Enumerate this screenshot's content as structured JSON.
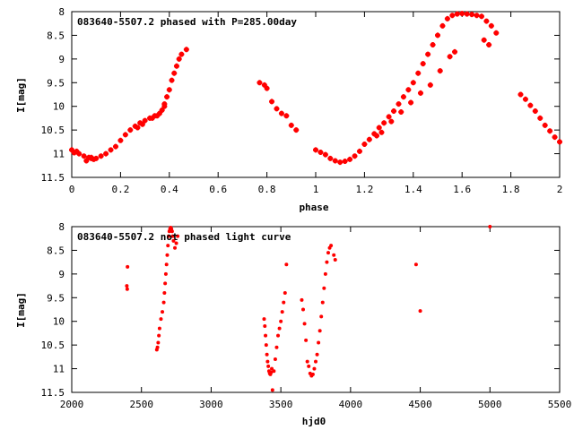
{
  "colors": {
    "points": "#ff0000",
    "axes": "#000000",
    "background": "#ffffff"
  },
  "chart_data": [
    {
      "type": "scatter",
      "title": "083640-5507.2 phased with P=285.00day",
      "xlabel": "phase",
      "ylabel": "I[mag]",
      "xlim": [
        0,
        2
      ],
      "ylim": [
        8,
        11.5
      ],
      "y_inverted": true,
      "grid": false,
      "x_ticks": [
        "0",
        "0.2",
        "0.4",
        "0.6",
        "0.8",
        "1",
        "1.2",
        "1.4",
        "1.6",
        "1.8",
        "2"
      ],
      "y_ticks": [
        "8",
        "8.5",
        "9",
        "9.5",
        "10",
        "10.5",
        "11",
        "11.5"
      ],
      "series": [
        {
          "x": [
            0.0,
            0.01,
            0.02,
            0.03,
            0.05,
            0.07,
            0.08,
            0.09,
            0.1,
            0.12,
            0.14,
            0.16,
            0.18,
            0.2,
            0.22,
            0.24,
            0.26,
            0.28,
            0.3,
            0.32,
            0.34,
            0.36,
            0.37,
            0.38,
            0.39,
            0.4,
            0.41,
            0.42,
            0.43,
            0.44,
            0.45,
            0.47,
            0.77,
            0.79,
            0.8,
            0.82,
            0.84,
            0.86,
            0.88,
            0.9,
            0.92,
            1.0,
            1.02,
            1.04,
            1.06,
            1.08,
            1.1,
            1.12,
            1.14,
            1.16,
            1.18,
            1.2,
            1.22,
            1.24,
            1.26,
            1.28,
            1.3,
            1.32,
            1.34,
            1.36,
            1.38,
            1.4,
            1.42,
            1.44,
            1.46,
            1.48,
            1.5,
            1.52,
            1.54,
            1.56,
            1.58,
            1.6,
            1.62,
            1.64,
            1.66,
            1.68,
            1.7,
            1.72,
            1.74,
            1.84,
            1.86,
            1.88,
            1.9,
            1.92,
            1.94,
            1.96,
            1.98,
            2.0,
            0.27,
            0.29,
            0.33,
            0.35,
            0.38,
            1.25,
            1.27,
            1.31,
            1.35,
            1.39,
            1.43,
            1.47,
            1.51,
            1.55,
            1.57,
            1.69,
            1.71,
            0.08,
            0.06
          ],
          "y": [
            10.92,
            10.98,
            10.95,
            11.0,
            11.05,
            11.08,
            11.1,
            11.12,
            11.1,
            11.05,
            11.0,
            10.92,
            10.85,
            10.72,
            10.6,
            10.5,
            10.42,
            10.35,
            10.3,
            10.25,
            10.2,
            10.15,
            10.08,
            9.95,
            9.8,
            9.65,
            9.45,
            9.3,
            9.15,
            9.0,
            8.9,
            8.8,
            9.5,
            9.55,
            9.62,
            9.9,
            10.05,
            10.15,
            10.2,
            10.4,
            10.5,
            10.92,
            10.97,
            11.02,
            11.1,
            11.15,
            11.18,
            11.16,
            11.12,
            11.05,
            10.95,
            10.8,
            10.7,
            10.58,
            10.45,
            10.35,
            10.22,
            10.1,
            9.95,
            9.8,
            9.65,
            9.5,
            9.3,
            9.1,
            8.9,
            8.7,
            8.5,
            8.3,
            8.15,
            8.08,
            8.05,
            8.04,
            8.05,
            8.06,
            8.08,
            8.1,
            8.2,
            8.3,
            8.45,
            9.75,
            9.85,
            9.98,
            10.1,
            10.25,
            10.4,
            10.52,
            10.65,
            10.75,
            10.45,
            10.38,
            10.25,
            10.2,
            10.0,
            10.62,
            10.55,
            10.32,
            10.12,
            9.92,
            9.72,
            9.55,
            9.25,
            8.95,
            8.85,
            8.6,
            8.7,
            11.08,
            11.15
          ]
        }
      ]
    },
    {
      "type": "scatter",
      "title": "083640-5507.2 not phased light curve",
      "xlabel": "hjd0",
      "ylabel": "I[mag]",
      "xlim": [
        2000,
        5500
      ],
      "ylim": [
        8,
        11.5
      ],
      "y_inverted": true,
      "grid": false,
      "x_ticks": [
        "2000",
        "2500",
        "3000",
        "3500",
        "4000",
        "4500",
        "5000",
        "5500"
      ],
      "y_ticks": [
        "8",
        "8.5",
        "9",
        "9.5",
        "10",
        "10.5",
        "11",
        "11.5"
      ],
      "series": [
        {
          "x": [
            2395,
            2398,
            2400,
            2610,
            2615,
            2620,
            2625,
            2630,
            2640,
            2650,
            2660,
            2665,
            2670,
            2675,
            2680,
            2685,
            2690,
            2695,
            2700,
            2705,
            2710,
            2715,
            2720,
            2725,
            2730,
            2740,
            2750,
            2760,
            3380,
            3385,
            3390,
            3395,
            3400,
            3405,
            3410,
            3415,
            3420,
            3425,
            3430,
            3435,
            3440,
            3450,
            3460,
            3470,
            3480,
            3490,
            3500,
            3510,
            3520,
            3530,
            3540,
            3650,
            3660,
            3670,
            3680,
            3690,
            3700,
            3710,
            3720,
            3730,
            3740,
            3750,
            3760,
            3770,
            3780,
            3790,
            3800,
            3810,
            3820,
            3830,
            3840,
            3850,
            3860,
            3880,
            3890,
            4470,
            4500,
            5000
          ],
          "y": [
            9.25,
            9.32,
            8.85,
            10.6,
            10.55,
            10.45,
            10.3,
            10.15,
            9.95,
            9.8,
            9.6,
            9.4,
            9.2,
            9.0,
            8.8,
            8.6,
            8.4,
            8.2,
            8.1,
            8.05,
            8.02,
            8.05,
            8.1,
            8.2,
            8.3,
            8.45,
            8.35,
            8.2,
            9.95,
            10.1,
            10.3,
            10.5,
            10.7,
            10.85,
            10.95,
            11.05,
            11.1,
            11.12,
            11.08,
            11.0,
            11.45,
            11.05,
            10.8,
            10.55,
            10.3,
            10.15,
            10.0,
            9.8,
            9.6,
            9.4,
            8.8,
            9.55,
            9.75,
            10.05,
            10.4,
            10.85,
            10.95,
            11.1,
            11.15,
            11.12,
            11.0,
            10.85,
            10.7,
            10.45,
            10.2,
            9.9,
            9.6,
            9.3,
            9.0,
            8.75,
            8.55,
            8.45,
            8.4,
            8.6,
            8.7,
            8.8,
            9.78,
            8.0
          ]
        }
      ]
    }
  ]
}
